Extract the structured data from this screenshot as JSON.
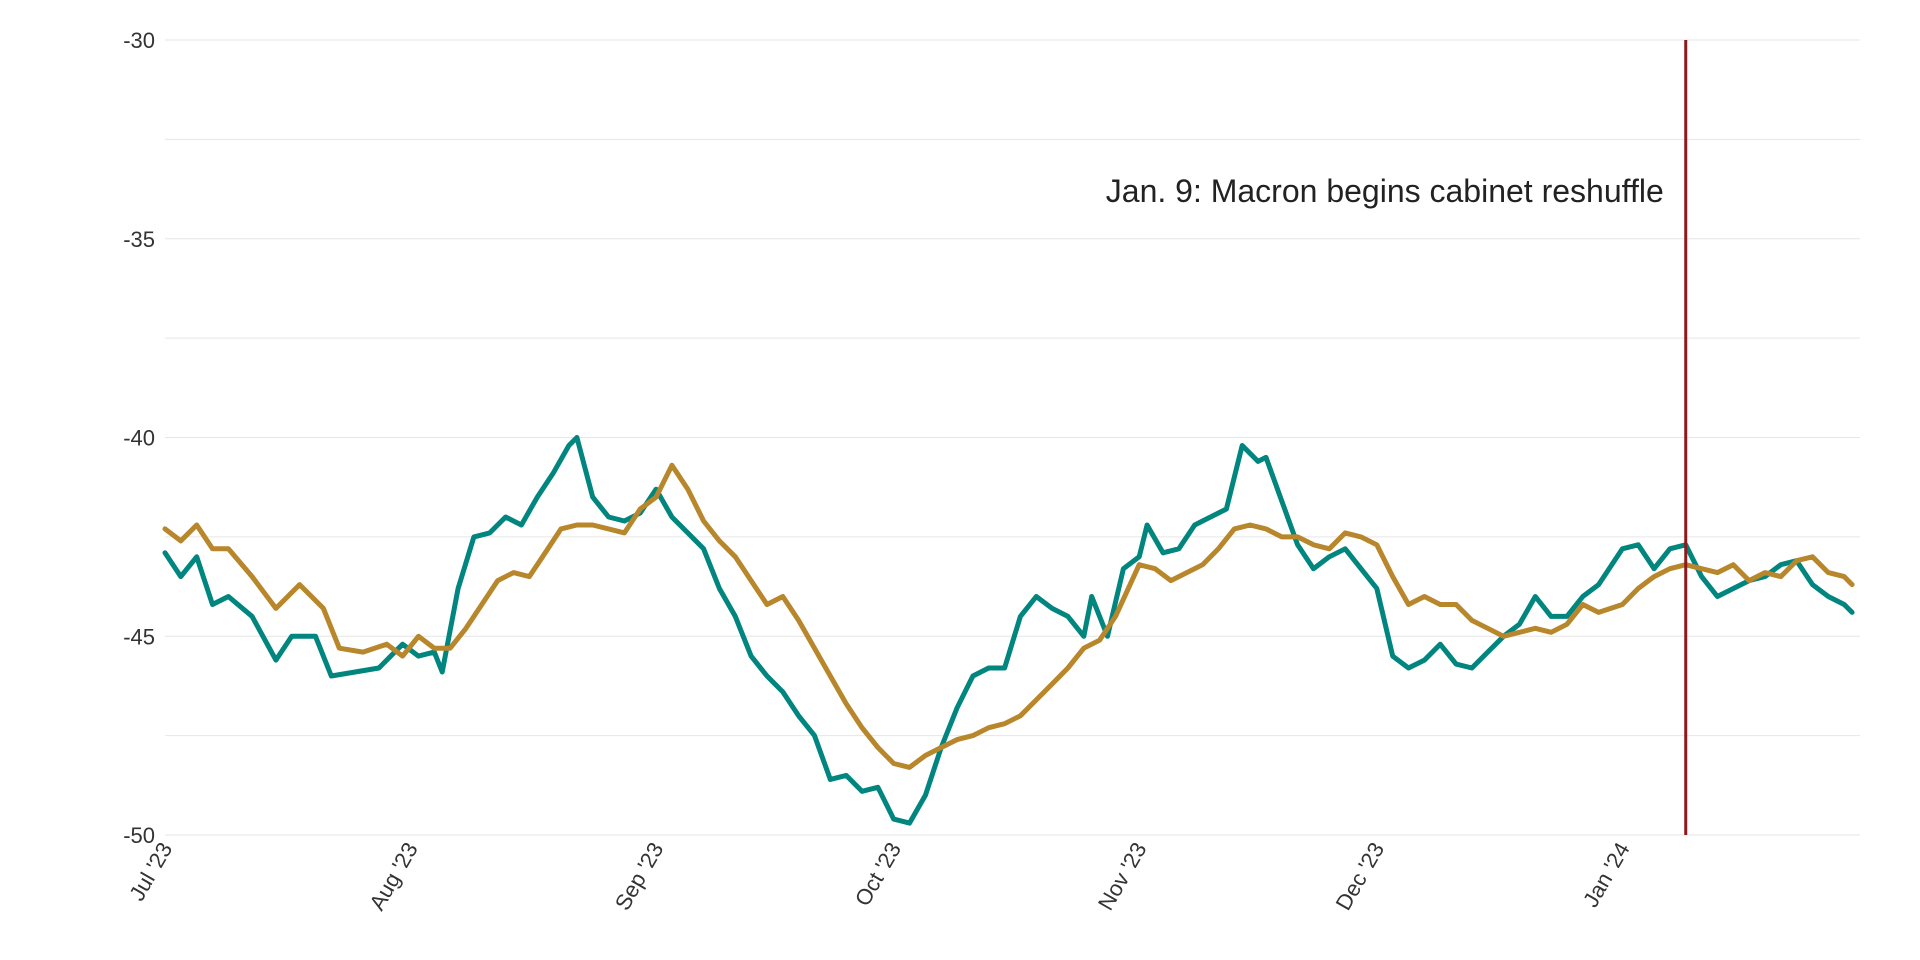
{
  "chart_data": {
    "type": "line",
    "title": "",
    "xlabel": "",
    "ylabel": "",
    "x_range": [
      "2023-07-01",
      "2024-01-31"
    ],
    "ylim": [
      -50,
      -30
    ],
    "y_ticks": [
      -30,
      -35,
      -40,
      -45,
      -50
    ],
    "y_tick_labels": [
      "-30",
      "-35",
      "-40",
      "-45",
      "-50"
    ],
    "x_ticks": [
      "2023-07-01",
      "2023-08-01",
      "2023-09-01",
      "2023-10-01",
      "2023-11-01",
      "2023-12-01",
      "2024-01-01"
    ],
    "x_tick_labels": [
      "Jul '23",
      "Aug '23",
      "Sep '23",
      "Oct '23",
      "Nov '23",
      "Dec '23",
      "Jan '24"
    ],
    "grid": true,
    "annotation": {
      "date": "2024-01-09",
      "text": "Jan. 9: Macron begins cabinet reshuffle",
      "color": "#8b1a1a"
    },
    "series": [
      {
        "color": "#00857f",
        "points": [
          [
            "2023-07-01",
            -42.9
          ],
          [
            "2023-07-03",
            -43.5
          ],
          [
            "2023-07-05",
            -43.0
          ],
          [
            "2023-07-07",
            -44.2
          ],
          [
            "2023-07-09",
            -44.0
          ],
          [
            "2023-07-12",
            -44.5
          ],
          [
            "2023-07-15",
            -45.6
          ],
          [
            "2023-07-17",
            -45.0
          ],
          [
            "2023-07-20",
            -45.0
          ],
          [
            "2023-07-22",
            -46.0
          ],
          [
            "2023-07-25",
            -45.9
          ],
          [
            "2023-07-28",
            -45.8
          ],
          [
            "2023-07-31",
            -45.2
          ],
          [
            "2023-08-02",
            -45.5
          ],
          [
            "2023-08-04",
            -45.4
          ],
          [
            "2023-08-05",
            -45.9
          ],
          [
            "2023-08-07",
            -43.8
          ],
          [
            "2023-08-09",
            -42.5
          ],
          [
            "2023-08-11",
            -42.4
          ],
          [
            "2023-08-13",
            -42.0
          ],
          [
            "2023-08-15",
            -42.2
          ],
          [
            "2023-08-17",
            -41.5
          ],
          [
            "2023-08-19",
            -40.9
          ],
          [
            "2023-08-21",
            -40.2
          ],
          [
            "2023-08-22",
            -40.0
          ],
          [
            "2023-08-24",
            -41.5
          ],
          [
            "2023-08-26",
            -42.0
          ],
          [
            "2023-08-28",
            -42.1
          ],
          [
            "2023-08-30",
            -41.9
          ],
          [
            "2023-09-01",
            -41.3
          ],
          [
            "2023-09-03",
            -42.0
          ],
          [
            "2023-09-05",
            -42.4
          ],
          [
            "2023-09-07",
            -42.8
          ],
          [
            "2023-09-09",
            -43.8
          ],
          [
            "2023-09-11",
            -44.5
          ],
          [
            "2023-09-13",
            -45.5
          ],
          [
            "2023-09-15",
            -46.0
          ],
          [
            "2023-09-17",
            -46.4
          ],
          [
            "2023-09-19",
            -47.0
          ],
          [
            "2023-09-21",
            -47.5
          ],
          [
            "2023-09-23",
            -48.6
          ],
          [
            "2023-09-25",
            -48.5
          ],
          [
            "2023-09-27",
            -48.9
          ],
          [
            "2023-09-29",
            -48.8
          ],
          [
            "2023-10-01",
            -49.6
          ],
          [
            "2023-10-03",
            -49.7
          ],
          [
            "2023-10-05",
            -49.0
          ],
          [
            "2023-10-07",
            -47.8
          ],
          [
            "2023-10-09",
            -46.8
          ],
          [
            "2023-10-11",
            -46.0
          ],
          [
            "2023-10-13",
            -45.8
          ],
          [
            "2023-10-15",
            -45.8
          ],
          [
            "2023-10-17",
            -44.5
          ],
          [
            "2023-10-19",
            -44.0
          ],
          [
            "2023-10-21",
            -44.3
          ],
          [
            "2023-10-23",
            -44.5
          ],
          [
            "2023-10-25",
            -45.0
          ],
          [
            "2023-10-26",
            -44.0
          ],
          [
            "2023-10-28",
            -45.0
          ],
          [
            "2023-10-30",
            -43.3
          ],
          [
            "2023-11-01",
            -43.0
          ],
          [
            "2023-11-02",
            -42.2
          ],
          [
            "2023-11-04",
            -42.9
          ],
          [
            "2023-11-06",
            -42.8
          ],
          [
            "2023-11-08",
            -42.2
          ],
          [
            "2023-11-10",
            -42.0
          ],
          [
            "2023-11-12",
            -41.8
          ],
          [
            "2023-11-14",
            -40.2
          ],
          [
            "2023-11-16",
            -40.6
          ],
          [
            "2023-11-17",
            -40.5
          ],
          [
            "2023-11-19",
            -41.6
          ],
          [
            "2023-11-21",
            -42.7
          ],
          [
            "2023-11-23",
            -43.3
          ],
          [
            "2023-11-25",
            -43.0
          ],
          [
            "2023-11-27",
            -42.8
          ],
          [
            "2023-11-29",
            -43.3
          ],
          [
            "2023-12-01",
            -43.8
          ],
          [
            "2023-12-03",
            -45.5
          ],
          [
            "2023-12-05",
            -45.8
          ],
          [
            "2023-12-07",
            -45.6
          ],
          [
            "2023-12-09",
            -45.2
          ],
          [
            "2023-12-11",
            -45.7
          ],
          [
            "2023-12-13",
            -45.8
          ],
          [
            "2023-12-15",
            -45.4
          ],
          [
            "2023-12-17",
            -45.0
          ],
          [
            "2023-12-19",
            -44.7
          ],
          [
            "2023-12-21",
            -44.0
          ],
          [
            "2023-12-23",
            -44.5
          ],
          [
            "2023-12-25",
            -44.5
          ],
          [
            "2023-12-27",
            -44.0
          ],
          [
            "2023-12-29",
            -43.7
          ],
          [
            "2024-01-01",
            -42.8
          ],
          [
            "2024-01-03",
            -42.7
          ],
          [
            "2024-01-05",
            -43.3
          ],
          [
            "2024-01-07",
            -42.8
          ],
          [
            "2024-01-09",
            -42.7
          ],
          [
            "2024-01-11",
            -43.5
          ],
          [
            "2024-01-13",
            -44.0
          ],
          [
            "2024-01-15",
            -43.8
          ],
          [
            "2024-01-17",
            -43.6
          ],
          [
            "2024-01-19",
            -43.5
          ],
          [
            "2024-01-21",
            -43.2
          ],
          [
            "2024-01-23",
            -43.1
          ],
          [
            "2024-01-25",
            -43.7
          ],
          [
            "2024-01-27",
            -44.0
          ],
          [
            "2024-01-29",
            -44.2
          ],
          [
            "2024-01-30",
            -44.4
          ]
        ]
      },
      {
        "color": "#b8862b",
        "points": [
          [
            "2023-07-01",
            -42.3
          ],
          [
            "2023-07-03",
            -42.6
          ],
          [
            "2023-07-05",
            -42.2
          ],
          [
            "2023-07-07",
            -42.8
          ],
          [
            "2023-07-09",
            -42.8
          ],
          [
            "2023-07-12",
            -43.5
          ],
          [
            "2023-07-15",
            -44.3
          ],
          [
            "2023-07-18",
            -43.7
          ],
          [
            "2023-07-21",
            -44.3
          ],
          [
            "2023-07-23",
            -45.3
          ],
          [
            "2023-07-26",
            -45.4
          ],
          [
            "2023-07-29",
            -45.2
          ],
          [
            "2023-07-31",
            -45.5
          ],
          [
            "2023-08-02",
            -45.0
          ],
          [
            "2023-08-04",
            -45.3
          ],
          [
            "2023-08-06",
            -45.3
          ],
          [
            "2023-08-08",
            -44.8
          ],
          [
            "2023-08-10",
            -44.2
          ],
          [
            "2023-08-12",
            -43.6
          ],
          [
            "2023-08-14",
            -43.4
          ],
          [
            "2023-08-16",
            -43.5
          ],
          [
            "2023-08-18",
            -42.9
          ],
          [
            "2023-08-20",
            -42.3
          ],
          [
            "2023-08-22",
            -42.2
          ],
          [
            "2023-08-24",
            -42.2
          ],
          [
            "2023-08-26",
            -42.3
          ],
          [
            "2023-08-28",
            -42.4
          ],
          [
            "2023-08-30",
            -41.8
          ],
          [
            "2023-09-01",
            -41.5
          ],
          [
            "2023-09-03",
            -40.7
          ],
          [
            "2023-09-05",
            -41.3
          ],
          [
            "2023-09-07",
            -42.1
          ],
          [
            "2023-09-09",
            -42.6
          ],
          [
            "2023-09-11",
            -43.0
          ],
          [
            "2023-09-13",
            -43.6
          ],
          [
            "2023-09-15",
            -44.2
          ],
          [
            "2023-09-17",
            -44.0
          ],
          [
            "2023-09-19",
            -44.6
          ],
          [
            "2023-09-21",
            -45.3
          ],
          [
            "2023-09-23",
            -46.0
          ],
          [
            "2023-09-25",
            -46.7
          ],
          [
            "2023-09-27",
            -47.3
          ],
          [
            "2023-09-29",
            -47.8
          ],
          [
            "2023-10-01",
            -48.2
          ],
          [
            "2023-10-03",
            -48.3
          ],
          [
            "2023-10-05",
            -48.0
          ],
          [
            "2023-10-07",
            -47.8
          ],
          [
            "2023-10-09",
            -47.6
          ],
          [
            "2023-10-11",
            -47.5
          ],
          [
            "2023-10-13",
            -47.3
          ],
          [
            "2023-10-15",
            -47.2
          ],
          [
            "2023-10-17",
            -47.0
          ],
          [
            "2023-10-19",
            -46.6
          ],
          [
            "2023-10-21",
            -46.2
          ],
          [
            "2023-10-23",
            -45.8
          ],
          [
            "2023-10-25",
            -45.3
          ],
          [
            "2023-10-27",
            -45.1
          ],
          [
            "2023-10-29",
            -44.5
          ],
          [
            "2023-11-01",
            -43.2
          ],
          [
            "2023-11-03",
            -43.3
          ],
          [
            "2023-11-05",
            -43.6
          ],
          [
            "2023-11-07",
            -43.4
          ],
          [
            "2023-11-09",
            -43.2
          ],
          [
            "2023-11-11",
            -42.8
          ],
          [
            "2023-11-13",
            -42.3
          ],
          [
            "2023-11-15",
            -42.2
          ],
          [
            "2023-11-17",
            -42.3
          ],
          [
            "2023-11-19",
            -42.5
          ],
          [
            "2023-11-21",
            -42.5
          ],
          [
            "2023-11-23",
            -42.7
          ],
          [
            "2023-11-25",
            -42.8
          ],
          [
            "2023-11-27",
            -42.4
          ],
          [
            "2023-11-29",
            -42.5
          ],
          [
            "2023-12-01",
            -42.7
          ],
          [
            "2023-12-03",
            -43.5
          ],
          [
            "2023-12-05",
            -44.2
          ],
          [
            "2023-12-07",
            -44.0
          ],
          [
            "2023-12-09",
            -44.2
          ],
          [
            "2023-12-11",
            -44.2
          ],
          [
            "2023-12-13",
            -44.6
          ],
          [
            "2023-12-15",
            -44.8
          ],
          [
            "2023-12-17",
            -45.0
          ],
          [
            "2023-12-19",
            -44.9
          ],
          [
            "2023-12-21",
            -44.8
          ],
          [
            "2023-12-23",
            -44.9
          ],
          [
            "2023-12-25",
            -44.7
          ],
          [
            "2023-12-27",
            -44.2
          ],
          [
            "2023-12-29",
            -44.4
          ],
          [
            "2024-01-01",
            -44.2
          ],
          [
            "2024-01-03",
            -43.8
          ],
          [
            "2024-01-05",
            -43.5
          ],
          [
            "2024-01-07",
            -43.3
          ],
          [
            "2024-01-09",
            -43.2
          ],
          [
            "2024-01-11",
            -43.3
          ],
          [
            "2024-01-13",
            -43.4
          ],
          [
            "2024-01-15",
            -43.2
          ],
          [
            "2024-01-17",
            -43.6
          ],
          [
            "2024-01-19",
            -43.4
          ],
          [
            "2024-01-21",
            -43.5
          ],
          [
            "2024-01-23",
            -43.1
          ],
          [
            "2024-01-25",
            -43.0
          ],
          [
            "2024-01-27",
            -43.4
          ],
          [
            "2024-01-29",
            -43.5
          ],
          [
            "2024-01-30",
            -43.7
          ]
        ]
      }
    ]
  }
}
